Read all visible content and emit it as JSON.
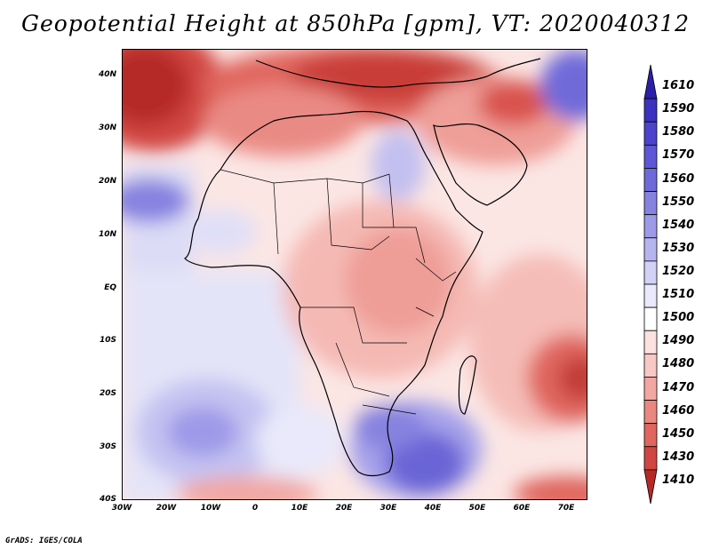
{
  "title": "Geopotential Height at 850hPa [gpm], VT: 2020040312",
  "credit": "GrADS: IGES/COLA",
  "map": {
    "projection": "lat-lon",
    "lon_range": [
      -30,
      75
    ],
    "lat_range": [
      -40,
      45
    ],
    "y_ticks": [
      "40N",
      "30N",
      "20N",
      "10N",
      "EQ",
      "10S",
      "20S",
      "30S",
      "40S"
    ],
    "x_ticks": [
      "30W",
      "20W",
      "10W",
      "0",
      "10E",
      "20E",
      "30E",
      "40E",
      "50E",
      "60E",
      "70E"
    ]
  },
  "colorbar": {
    "labels": [
      "1610",
      "1590",
      "1580",
      "1570",
      "1560",
      "1550",
      "1540",
      "1530",
      "1520",
      "1510",
      "1500",
      "1490",
      "1480",
      "1470",
      "1460",
      "1450",
      "1430",
      "1410"
    ],
    "colors": [
      "#2a1fa8",
      "#3b32c0",
      "#4b43cc",
      "#5d56d6",
      "#6f6ad9",
      "#8682e0",
      "#9d9ae8",
      "#b6b4ef",
      "#d2d1f6",
      "#e9e9fb",
      "#ffffff",
      "#fbe2e0",
      "#f7c8c4",
      "#f2a7a2",
      "#e98780",
      "#e0665f",
      "#d14642",
      "#b52a26"
    ]
  }
}
